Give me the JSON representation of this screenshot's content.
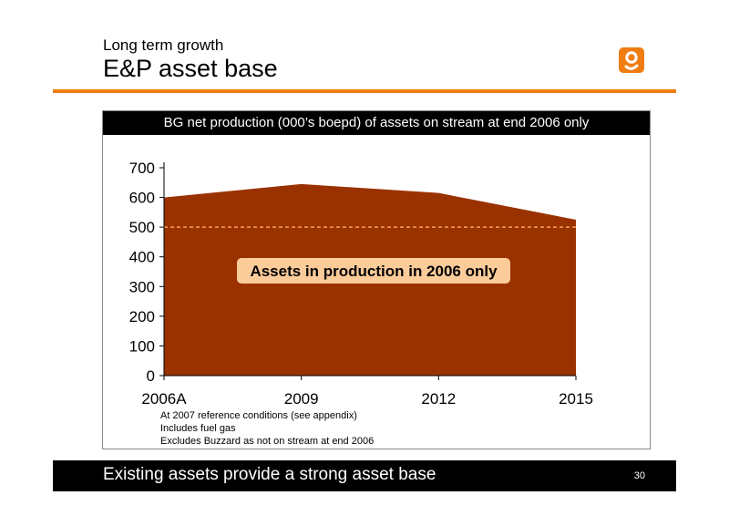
{
  "slide": {
    "subtitle": "Long term growth",
    "title": "E&P asset base",
    "footer_text": "Existing assets provide a strong asset base",
    "page_number": "30",
    "accent_color": "#f07d12",
    "logo_icon": "bg-logo-icon"
  },
  "chart_data": {
    "type": "area",
    "title": "BG net production (000’s boepd) of assets on stream at end 2006 only",
    "x": [
      "2006A",
      "2009",
      "2012",
      "2015"
    ],
    "series": [
      {
        "values": [
          600,
          645,
          615,
          525
        ],
        "color": "#9a3200"
      }
    ],
    "reference_line": {
      "value": 500,
      "style": "dashed",
      "color": "#f4a35a"
    },
    "ylim": [
      0,
      700
    ],
    "yticks": [
      0,
      100,
      200,
      300,
      400,
      500,
      600,
      700
    ],
    "annotation": "Assets in production in 2006 only",
    "annotation_color": "#fbcb9a",
    "notes": [
      "At 2007 reference conditions (see appendix)",
      "Includes fuel gas",
      "Excludes Buzzard as not on stream at end 2006"
    ],
    "grid": false
  }
}
